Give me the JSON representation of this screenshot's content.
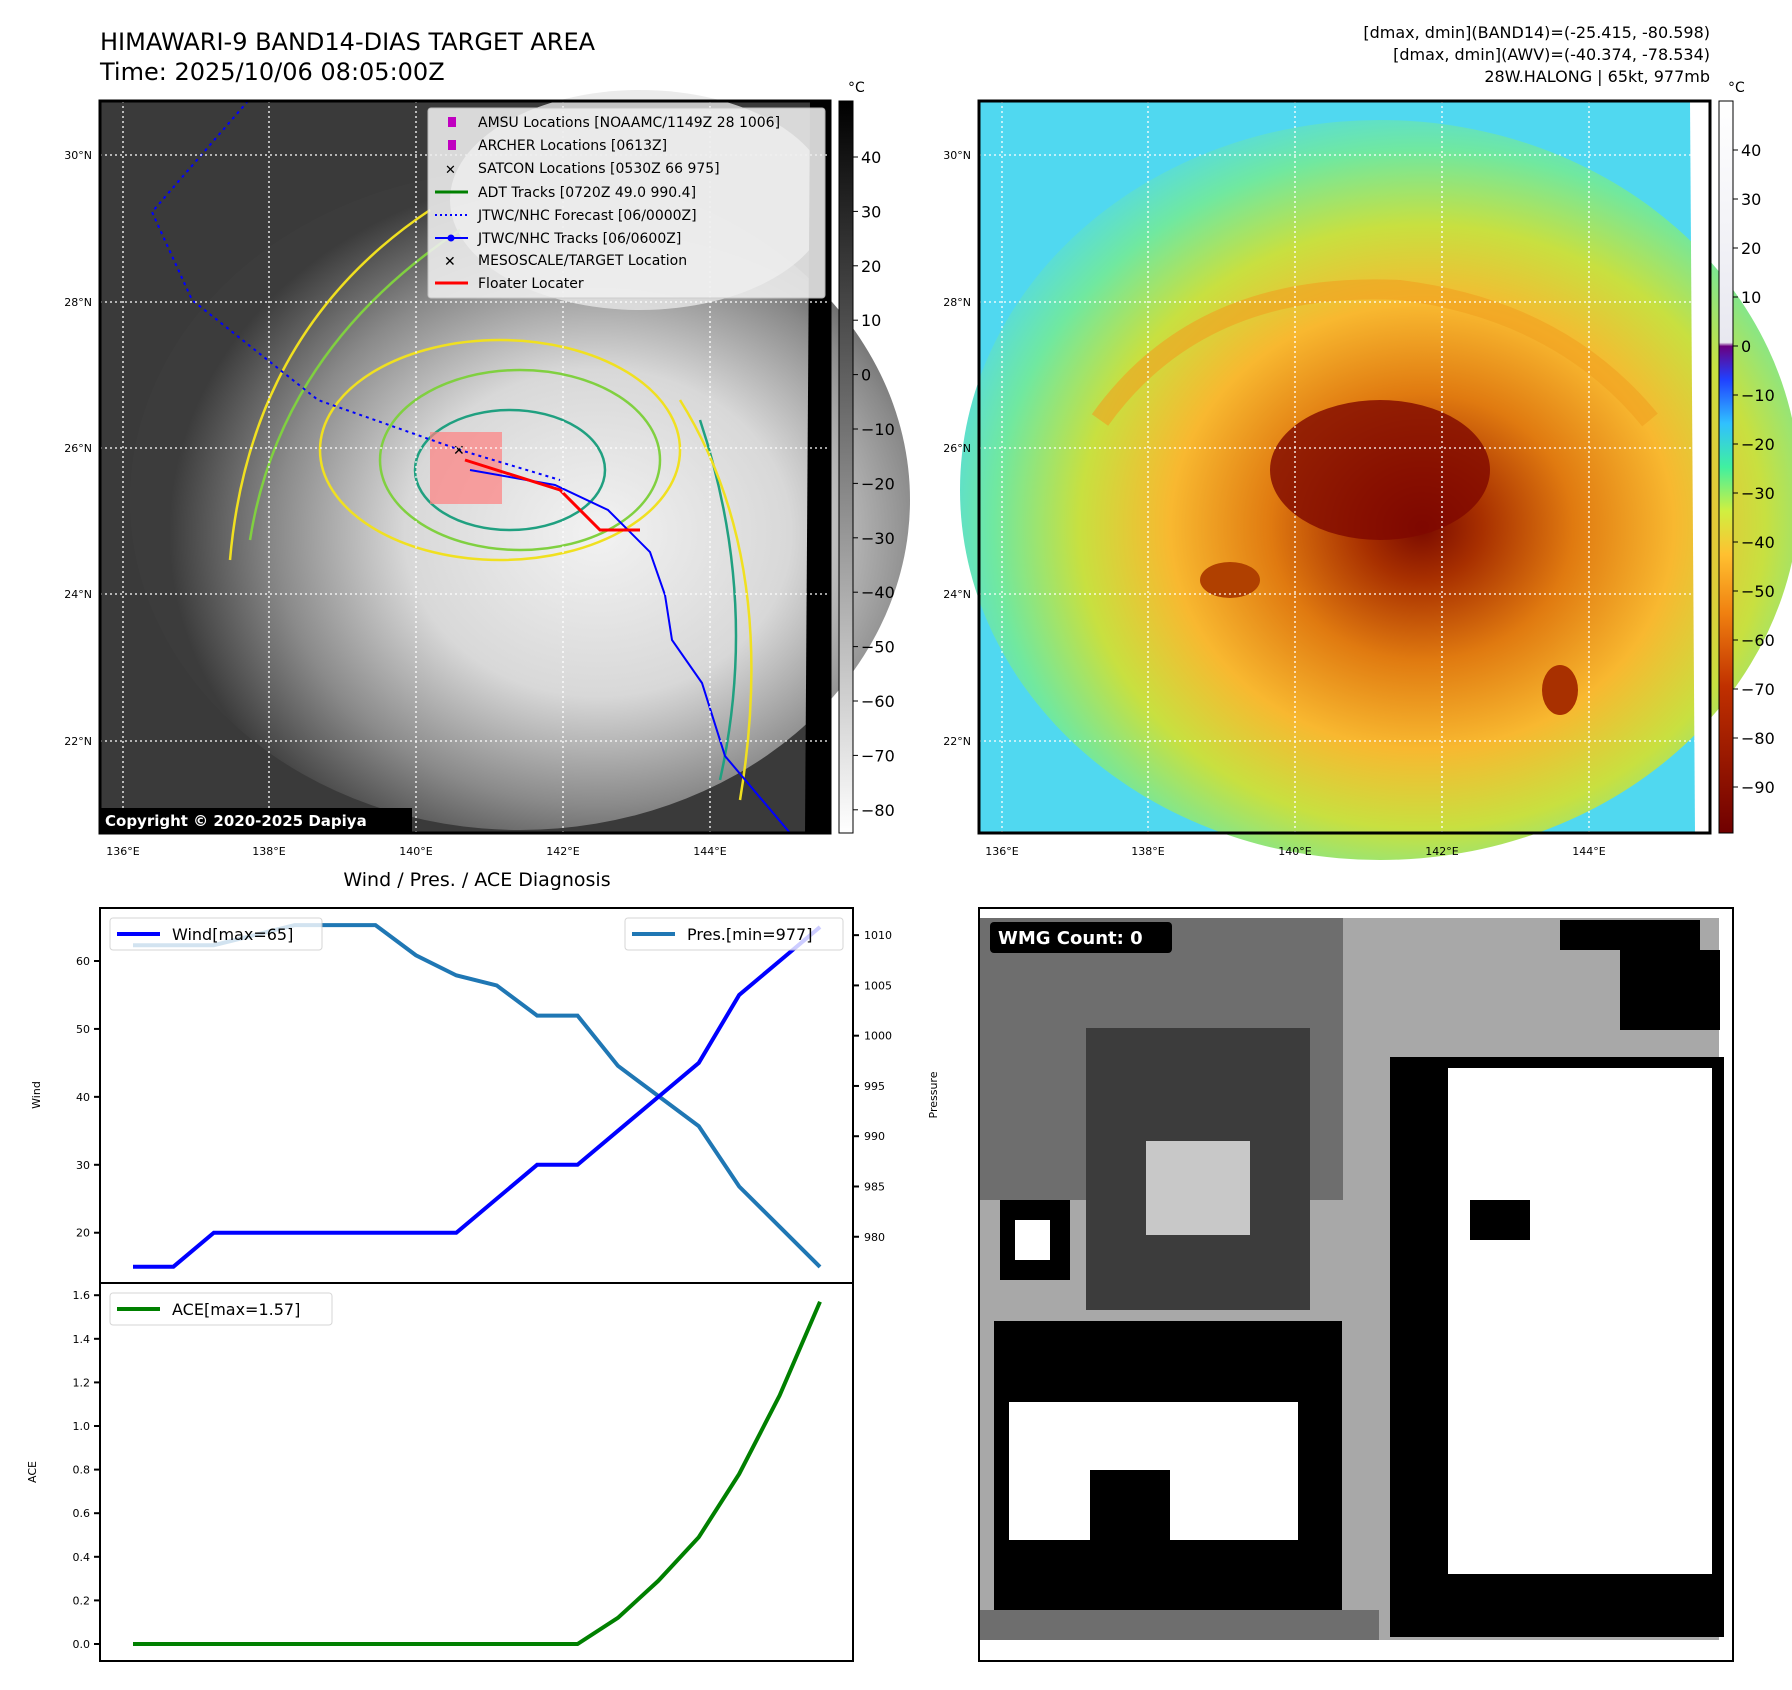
{
  "header": {
    "title": "HIMAWARI-9 BAND14-DIAS TARGET AREA",
    "time": "Time: 2025/10/06 08:05:00Z",
    "stats_band14": "[dmax, dmin](BAND14)=(-25.415, -80.598)",
    "stats_awv": "[dmax, dmin](AWV)=(-40.374, -78.534)",
    "storm": "28W.HALONG | 65kt, 977mb"
  },
  "map": {
    "lat_labels": [
      "30°N",
      "28°N",
      "26°N",
      "24°N",
      "22°N"
    ],
    "lon_labels": [
      "136°E",
      "138°E",
      "140°E",
      "142°E",
      "144°E"
    ],
    "copyright": "Copyright © 2020-2025 Dapiya",
    "unit": "°C",
    "legend": [
      {
        "label": "AMSU Locations [NOAAMC/1149Z 28 1006]",
        "color": "#c000c0"
      },
      {
        "label": "ARCHER Locations [0613Z]",
        "color": "#c000c0"
      },
      {
        "label": "SATCON Locations [0530Z 66 975]",
        "color": "#00b0b0"
      },
      {
        "label": "ADT Tracks [0720Z 49.0 990.4]",
        "color": "#008000"
      },
      {
        "label": "JTWC/NHC Forecast [06/0000Z]",
        "color": "#0000ff"
      },
      {
        "label": "JTWC/NHC Tracks [06/0600Z]",
        "color": "#0000ff"
      },
      {
        "label": "MESOSCALE/TARGET Location",
        "color": "#ff0000"
      },
      {
        "label": "Floater Locater",
        "color": "#ff0000"
      }
    ],
    "colorbar_gray_ticks": [
      "40",
      "30",
      "20",
      "10",
      "0",
      "−10",
      "−20",
      "−30",
      "−40",
      "−50",
      "−60",
      "−70",
      "−80"
    ],
    "colorbar_color_ticks": [
      "40",
      "30",
      "20",
      "10",
      "0",
      "−10",
      "−20",
      "−30",
      "−40",
      "−50",
      "−60",
      "−70",
      "−80",
      "−90"
    ]
  },
  "wmg": {
    "label": "WMG Count: 0"
  },
  "chart_data": [
    {
      "type": "line",
      "title": "Wind / Pres. / ACE Diagnosis",
      "ylabel": "Wind",
      "y2label": "Pressure",
      "ylim": [
        12.6,
        67.8
      ],
      "y2lim": [
        975.4,
        1012.7
      ],
      "yticks": [
        20,
        30,
        40,
        50,
        60
      ],
      "y2ticks": [
        980,
        985,
        990,
        995,
        1000,
        1005,
        1010
      ],
      "series": [
        {
          "name": "Wind[max=65]",
          "color": "#0000ff",
          "values": [
            15,
            15,
            20,
            20,
            20,
            20,
            20,
            20,
            20,
            25,
            30,
            30,
            35,
            40,
            45,
            55,
            60,
            65
          ]
        },
        {
          "name": "Pres.[min=977]",
          "color": "#1f77b4",
          "axis": "right",
          "values": [
            1009,
            1009,
            1009,
            1010,
            1011,
            1011,
            1011,
            1008,
            1006,
            1005,
            1002,
            1002,
            997,
            994,
            991,
            985,
            981,
            977
          ]
        }
      ]
    },
    {
      "type": "line",
      "ylabel": "ACE",
      "ylim": [
        -0.078,
        1.656
      ],
      "yticks": [
        "0.0",
        "0.2",
        "0.4",
        "0.6",
        "0.8",
        "1.0",
        "1.2",
        "1.4",
        "1.6"
      ],
      "series": [
        {
          "name": "ACE[max=1.57]",
          "color": "#008000",
          "values": [
            0,
            0,
            0,
            0,
            0,
            0,
            0,
            0,
            0,
            0,
            0,
            0,
            0.12,
            0.29,
            0.49,
            0.78,
            1.14,
            1.57
          ]
        }
      ]
    }
  ]
}
